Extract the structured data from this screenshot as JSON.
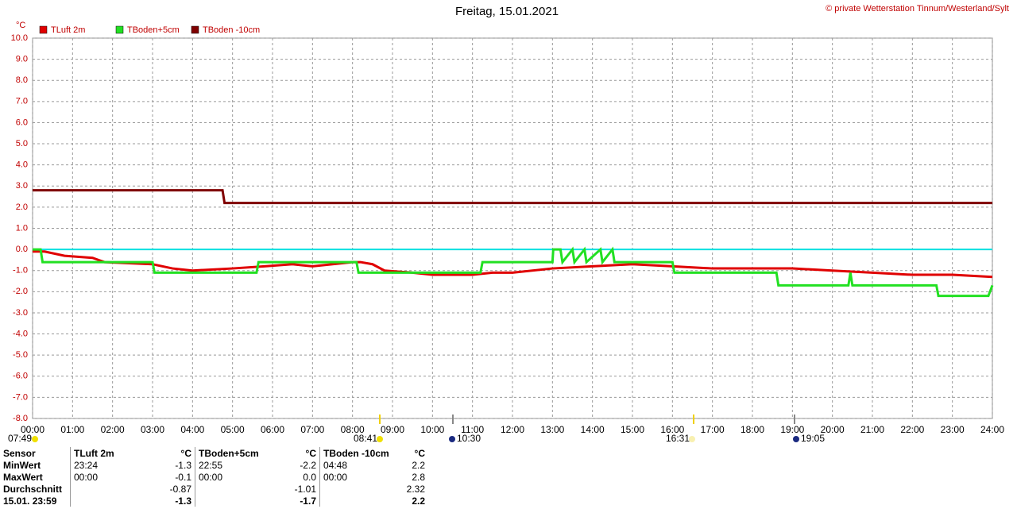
{
  "chart_data": {
    "type": "line",
    "title": "Freitag, 15.01.2021",
    "credit": "© private Wetterstation Tinnum/Westerland/Sylt",
    "y_label": "°C",
    "xlim": [
      0,
      24
    ],
    "xticks": [
      {
        "value": 0,
        "label": "00:00"
      },
      {
        "value": 1,
        "label": "01:00"
      },
      {
        "value": 2,
        "label": "02:00"
      },
      {
        "value": 3,
        "label": "03:00"
      },
      {
        "value": 4,
        "label": "04:00"
      },
      {
        "value": 5,
        "label": "05:00"
      },
      {
        "value": 6,
        "label": "06:00"
      },
      {
        "value": 7,
        "label": "07:00"
      },
      {
        "value": 8,
        "label": "08:00"
      },
      {
        "value": 9,
        "label": "09:00"
      },
      {
        "value": 10,
        "label": "10:00"
      },
      {
        "value": 11,
        "label": "11:00"
      },
      {
        "value": 12,
        "label": "12:00"
      },
      {
        "value": 13,
        "label": "13:00"
      },
      {
        "value": 14,
        "label": "14:00"
      },
      {
        "value": 15,
        "label": "15:00"
      },
      {
        "value": 16,
        "label": "16:00"
      },
      {
        "value": 17,
        "label": "17:00"
      },
      {
        "value": 18,
        "label": "18:00"
      },
      {
        "value": 19,
        "label": "19:00"
      },
      {
        "value": 20,
        "label": "20:00"
      },
      {
        "value": 21,
        "label": "21:00"
      },
      {
        "value": 22,
        "label": "22:00"
      },
      {
        "value": 23,
        "label": "23:00"
      },
      {
        "value": 24,
        "label": "24:00"
      }
    ],
    "ylim": [
      -8,
      10
    ],
    "yticks": [
      {
        "value": 10,
        "label": "10.0"
      },
      {
        "value": 9,
        "label": "9.0"
      },
      {
        "value": 8,
        "label": "8.0"
      },
      {
        "value": 7,
        "label": "7.0"
      },
      {
        "value": 6,
        "label": "6.0"
      },
      {
        "value": 5,
        "label": "5.0"
      },
      {
        "value": 4,
        "label": "4.0"
      },
      {
        "value": 3,
        "label": "3.0"
      },
      {
        "value": 2,
        "label": "2.0"
      },
      {
        "value": 1,
        "label": "1.0"
      },
      {
        "value": 0,
        "label": "0.0"
      },
      {
        "value": -1,
        "label": "-1.0"
      },
      {
        "value": -2,
        "label": "-2.0"
      },
      {
        "value": -3,
        "label": "-3.0"
      },
      {
        "value": -4,
        "label": "-4.0"
      },
      {
        "value": -5,
        "label": "-5.0"
      },
      {
        "value": -6,
        "label": "-6.0"
      },
      {
        "value": -7,
        "label": "-7.0"
      },
      {
        "value": -8,
        "label": "-8.0"
      }
    ],
    "grid": true,
    "annotations": [
      "07:49",
      "08:41",
      "10:30",
      "16:31",
      "19:05"
    ],
    "series": [
      {
        "name": "TLuft 2m",
        "color": "#e00000",
        "x": [
          0,
          0.3,
          0.8,
          1.5,
          1.8,
          3,
          3.5,
          4,
          5,
          5.8,
          6.5,
          7,
          8,
          8.2,
          8.5,
          8.8,
          9.5,
          10,
          11,
          11.5,
          12,
          13,
          14,
          15,
          16,
          17,
          18,
          19,
          20,
          21,
          22,
          23,
          24
        ],
        "values": [
          -0.1,
          -0.1,
          -0.3,
          -0.4,
          -0.6,
          -0.7,
          -0.9,
          -1.0,
          -0.9,
          -0.8,
          -0.7,
          -0.8,
          -0.6,
          -0.6,
          -0.7,
          -1.0,
          -1.1,
          -1.2,
          -1.2,
          -1.1,
          -1.1,
          -0.9,
          -0.8,
          -0.7,
          -0.8,
          -0.9,
          -0.9,
          -0.9,
          -1.0,
          -1.1,
          -1.2,
          -1.2,
          -1.3
        ]
      },
      {
        "name": "TBoden+5cm",
        "color": "#22e022",
        "x": [
          0,
          0.2,
          0.25,
          3,
          3.05,
          5.6,
          5.65,
          8.1,
          8.15,
          11.2,
          11.25,
          13,
          13.02,
          13.2,
          13.25,
          13.5,
          13.55,
          13.8,
          13.85,
          14.2,
          14.25,
          14.5,
          14.55,
          16,
          16.05,
          18.6,
          18.65,
          20.4,
          20.45,
          20.5,
          22.6,
          22.65,
          23.9,
          24
        ],
        "values": [
          0.0,
          0.0,
          -0.6,
          -0.6,
          -1.1,
          -1.1,
          -0.6,
          -0.6,
          -1.1,
          -1.1,
          -0.6,
          -0.6,
          0.0,
          0.0,
          -0.6,
          0.0,
          -0.6,
          0.0,
          -0.6,
          0.0,
          -0.6,
          0.0,
          -0.6,
          -0.6,
          -1.1,
          -1.1,
          -1.7,
          -1.7,
          -1.1,
          -1.7,
          -1.7,
          -2.2,
          -2.2,
          -1.7
        ]
      },
      {
        "name": "TBoden -10cm",
        "color": "#800000",
        "x": [
          0,
          4.75,
          4.8,
          24
        ],
        "values": [
          2.8,
          2.8,
          2.2,
          2.2
        ]
      }
    ]
  },
  "table": {
    "header": [
      "Sensor",
      "TLuft 2m",
      "°C",
      "TBoden+5cm",
      "°C",
      "TBoden -10cm",
      "°C"
    ],
    "rows": [
      [
        "MinWert",
        "23:24",
        "-1.3",
        "22:55",
        "-2.2",
        "04:48",
        "2.2"
      ],
      [
        "MaxWert",
        "00:00",
        "-0.1",
        "00:00",
        "0.0",
        "00:00",
        "2.8"
      ],
      [
        "Durchschnitt",
        null,
        "-0.87",
        null,
        "-1.01",
        null,
        "2.32"
      ],
      [
        "15.01. 23:59",
        null,
        "-1.3",
        null,
        "-1.7",
        null,
        "2.2"
      ]
    ]
  }
}
